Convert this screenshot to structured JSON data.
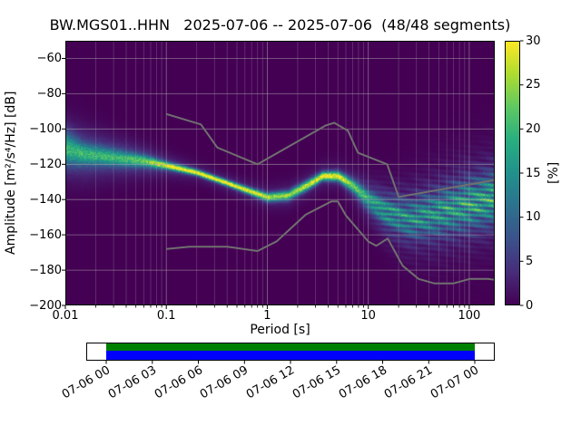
{
  "chart_data": {
    "type": "heatmap",
    "title": "BW.MGS01..HHN   2025-07-06 -- 2025-07-06  (48/48 segments)",
    "xlabel": "Period [s]",
    "ylabel": "Amplitude [m²/s⁴/Hz] [dB]",
    "x_scale": "log",
    "xlim": [
      0.01,
      179
    ],
    "ylim": [
      -200,
      -50
    ],
    "grid": {
      "major": true,
      "minor_x": true
    },
    "xticks": [
      {
        "value": 0.01,
        "label": "0.01"
      },
      {
        "value": 0.1,
        "label": "0.1"
      },
      {
        "value": 1,
        "label": "1"
      },
      {
        "value": 10,
        "label": "10"
      },
      {
        "value": 100,
        "label": "100"
      }
    ],
    "yticks": [
      {
        "value": -60,
        "label": "−60"
      },
      {
        "value": -80,
        "label": "−80"
      },
      {
        "value": -100,
        "label": "−100"
      },
      {
        "value": -120,
        "label": "−120"
      },
      {
        "value": -140,
        "label": "−140"
      },
      {
        "value": -160,
        "label": "−160"
      },
      {
        "value": -180,
        "label": "−180"
      },
      {
        "value": -200,
        "label": "−200"
      }
    ],
    "colormap_stops": [
      [
        0.0,
        "#440154"
      ],
      [
        0.125,
        "#472d7b"
      ],
      [
        0.25,
        "#3b528b"
      ],
      [
        0.375,
        "#2c728e"
      ],
      [
        0.5,
        "#21918c"
      ],
      [
        0.625,
        "#28ae80"
      ],
      [
        0.75,
        "#5ec962"
      ],
      [
        0.875,
        "#addc30"
      ],
      [
        1.0,
        "#fde725"
      ]
    ],
    "colorbar": {
      "label": "[%]",
      "vmin": 0,
      "vmax": 30,
      "ticks": [
        {
          "value": 0,
          "label": "0"
        },
        {
          "value": 5,
          "label": "5"
        },
        {
          "value": 10,
          "label": "10"
        },
        {
          "value": 15,
          "label": "15"
        },
        {
          "value": 20,
          "label": "20"
        },
        {
          "value": 25,
          "label": "25"
        },
        {
          "value": 30,
          "label": "30"
        }
      ]
    },
    "psd_histogram": {
      "description": "Probabilistic PSD distribution: per-period mode (dB), narrow-core sigma/peak-% and broad-haze sigma/%",
      "points": [
        {
          "period": 0.01,
          "db": -111,
          "sigma": 6.0,
          "peak_pct": 14,
          "sigma_broad": 11,
          "broad_pct": 6
        },
        {
          "period": 0.015,
          "db": -114,
          "sigma": 4.0,
          "peak_pct": 14,
          "sigma_broad": 10,
          "broad_pct": 6
        },
        {
          "period": 0.03,
          "db": -116,
          "sigma": 3.2,
          "peak_pct": 15,
          "sigma_broad": 8,
          "broad_pct": 5
        },
        {
          "period": 0.06,
          "db": -118,
          "sigma": 2.2,
          "peak_pct": 18,
          "sigma_broad": 6,
          "broad_pct": 5
        },
        {
          "period": 0.1,
          "db": -120.5,
          "sigma": 1.4,
          "peak_pct": 26,
          "sigma_broad": 4.5,
          "broad_pct": 4
        },
        {
          "period": 0.2,
          "db": -124.5,
          "sigma": 1.1,
          "peak_pct": 30,
          "sigma_broad": 3.5,
          "broad_pct": 3
        },
        {
          "period": 0.4,
          "db": -130.5,
          "sigma": 1.1,
          "peak_pct": 30,
          "sigma_broad": 3.5,
          "broad_pct": 3
        },
        {
          "period": 0.7,
          "db": -135.5,
          "sigma": 1.3,
          "peak_pct": 28,
          "sigma_broad": 4,
          "broad_pct": 3
        },
        {
          "period": 1.0,
          "db": -138.5,
          "sigma": 1.6,
          "peak_pct": 24,
          "sigma_broad": 4.5,
          "broad_pct": 3
        },
        {
          "period": 1.6,
          "db": -137.5,
          "sigma": 1.8,
          "peak_pct": 22,
          "sigma_broad": 5,
          "broad_pct": 3
        },
        {
          "period": 2.5,
          "db": -131.5,
          "sigma": 1.8,
          "peak_pct": 25,
          "sigma_broad": 5,
          "broad_pct": 3
        },
        {
          "period": 3.5,
          "db": -126.5,
          "sigma": 1.6,
          "peak_pct": 29,
          "sigma_broad": 5,
          "broad_pct": 3
        },
        {
          "period": 5.0,
          "db": -126.5,
          "sigma": 1.8,
          "peak_pct": 28,
          "sigma_broad": 5,
          "broad_pct": 3
        },
        {
          "period": 7.0,
          "db": -132,
          "sigma": 2.4,
          "peak_pct": 19,
          "sigma_broad": 6,
          "broad_pct": 4
        },
        {
          "period": 10,
          "db": -140,
          "sigma": 3.5,
          "peak_pct": 13,
          "sigma_broad": 8,
          "broad_pct": 5
        },
        {
          "period": 15,
          "db": -147,
          "sigma": 5.0,
          "peak_pct": 10,
          "sigma_broad": 11,
          "broad_pct": 5
        },
        {
          "period": 25,
          "db": -151,
          "sigma": 6.5,
          "peak_pct": 9,
          "sigma_broad": 14,
          "broad_pct": 4.5
        },
        {
          "period": 45,
          "db": -148,
          "sigma": 7.5,
          "peak_pct": 10,
          "sigma_broad": 16,
          "broad_pct": 4.5
        },
        {
          "period": 90,
          "db": -143,
          "sigma": 8.5,
          "peak_pct": 11,
          "sigma_broad": 17,
          "broad_pct": 4.5
        },
        {
          "period": 179,
          "db": -139,
          "sigma": 9.0,
          "peak_pct": 12,
          "sigma_broad": 18,
          "broad_pct": 4.5
        }
      ]
    },
    "noise_models": {
      "color": "#6f6f6f",
      "nhnm": [
        [
          0.1,
          -91.5
        ],
        [
          0.22,
          -97.4
        ],
        [
          0.32,
          -110.5
        ],
        [
          0.8,
          -120.0
        ],
        [
          3.8,
          -98.0
        ],
        [
          4.6,
          -96.5
        ],
        [
          6.3,
          -101.0
        ],
        [
          7.9,
          -113.5
        ],
        [
          15.4,
          -120.0
        ],
        [
          20.0,
          -138.5
        ],
        [
          354.8,
          -126.0
        ]
      ],
      "nlnm": [
        [
          0.1,
          -168.0
        ],
        [
          0.17,
          -166.7
        ],
        [
          0.4,
          -166.7
        ],
        [
          0.8,
          -169.2
        ],
        [
          1.24,
          -163.7
        ],
        [
          2.4,
          -148.6
        ],
        [
          4.3,
          -141.1
        ],
        [
          5.0,
          -141.1
        ],
        [
          6.0,
          -149.0
        ],
        [
          10.0,
          -163.8
        ],
        [
          12.0,
          -166.2
        ],
        [
          15.6,
          -162.1
        ],
        [
          21.9,
          -177.5
        ],
        [
          31.6,
          -185.0
        ],
        [
          45.0,
          -187.5
        ],
        [
          70.0,
          -187.5
        ],
        [
          101.0,
          -185.0
        ],
        [
          154.0,
          -185.0
        ],
        [
          328.0,
          -187.5
        ]
      ]
    },
    "timeline": {
      "ticks": [
        "07-06 00",
        "07-06 03",
        "07-06 06",
        "07-06 09",
        "07-06 12",
        "07-06 15",
        "07-06 18",
        "07-06 21",
        "07-07 00"
      ],
      "used_color": "#008000",
      "coverage_color": "#0000ff"
    }
  }
}
